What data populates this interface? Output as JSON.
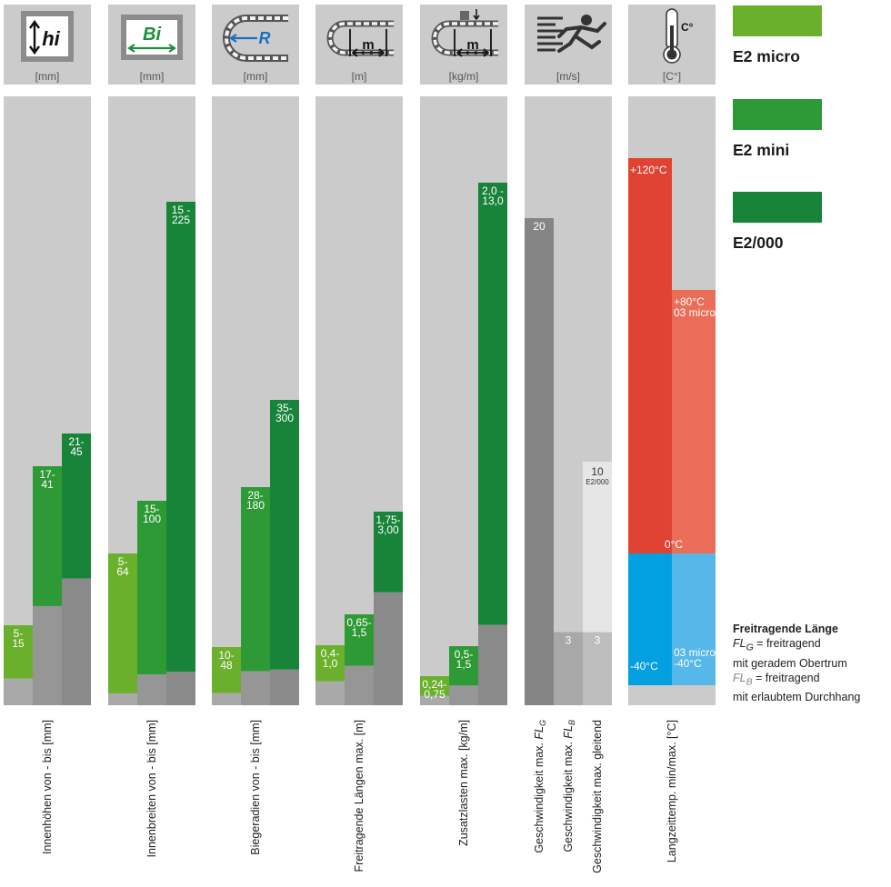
{
  "legend": [
    {
      "label": "E2 micro",
      "color": "#6ab02c"
    },
    {
      "label": "E2 mini",
      "color": "#2e9a36"
    },
    {
      "label": "E2/000",
      "color": "#17843a"
    }
  ],
  "icons": [
    {
      "name": "inner-height-icon",
      "text": "hi",
      "unit": "[mm]"
    },
    {
      "name": "inner-width-icon",
      "text": "Bi",
      "unit": "[mm]"
    },
    {
      "name": "bending-radius-icon",
      "text": "R",
      "unit": "[mm]"
    },
    {
      "name": "unsupported-length-icon",
      "text": "m",
      "unit": "[m]"
    },
    {
      "name": "additional-load-icon",
      "text": "m",
      "unit": "[kg/m]"
    },
    {
      "name": "running-man-icon",
      "text": "",
      "unit": "[m/s]"
    },
    {
      "name": "thermometer-icon",
      "text": "C°",
      "unit": "[C°]"
    }
  ],
  "note": {
    "title": "Freitragende Länge",
    "fl": "FL",
    "g_sub": "G",
    "b_sub": "B",
    "g_line1": " = freitragend",
    "g_line2": "mit geradem Obertrum",
    "b_line1": " = freitragend",
    "b_line2": "mit erlaubtem Durchhang"
  },
  "chart_data": [
    {
      "type": "bar",
      "title": "",
      "xlabel": "Innenhöhen von - bis [mm]",
      "unit": "[mm]",
      "series": [
        {
          "name": "E2 micro",
          "min": 5,
          "max": 15,
          "label_lines": [
            "5-",
            "15"
          ]
        },
        {
          "name": "E2 mini",
          "min": 17,
          "max": 41,
          "label_lines": [
            "17-",
            "41"
          ]
        },
        {
          "name": "E2/000",
          "min": 21,
          "max": 45,
          "label_lines": [
            "21-",
            "45"
          ]
        }
      ]
    },
    {
      "type": "bar",
      "title": "",
      "xlabel": "Innenbreiten von - bis [mm]",
      "unit": "[mm]",
      "series": [
        {
          "name": "E2 micro",
          "min": 5,
          "max": 64,
          "label_lines": [
            "5-",
            "64"
          ]
        },
        {
          "name": "E2 mini",
          "min": 15,
          "max": 100,
          "label_lines": [
            "15-",
            "100"
          ]
        },
        {
          "name": "E2/000",
          "min": 15,
          "max": 225,
          "label_lines": [
            "15 -",
            "225"
          ]
        }
      ]
    },
    {
      "type": "bar",
      "title": "",
      "xlabel": "Biegeradien von - bis [mm]",
      "unit": "[mm]",
      "series": [
        {
          "name": "E2 micro",
          "min": 10,
          "max": 48,
          "label_lines": [
            "10-",
            "48"
          ]
        },
        {
          "name": "E2 mini",
          "min": 28,
          "max": 180,
          "label_lines": [
            "28-",
            "180"
          ]
        },
        {
          "name": "E2/000",
          "min": 35,
          "max": 300,
          "label_lines": [
            "35-",
            "300"
          ]
        }
      ]
    },
    {
      "type": "bar",
      "title": "",
      "xlabel": "Freitragende Längen max. [m]",
      "unit": "[m]",
      "series": [
        {
          "name": "E2 micro",
          "min": 0.4,
          "max": 1.0,
          "label_lines": [
            "0,4-",
            "1,0"
          ]
        },
        {
          "name": "E2 mini",
          "min": 0.65,
          "max": 1.5,
          "label_lines": [
            "0,65-",
            "1,5"
          ]
        },
        {
          "name": "E2/000",
          "min": 1.75,
          "max": 3.0,
          "label_lines": [
            "1,75-",
            "3,00"
          ]
        }
      ]
    },
    {
      "type": "bar",
      "title": "",
      "xlabel": "Zusatzlasten max. [kg/m]",
      "unit": "[kg/m]",
      "series": [
        {
          "name": "E2 micro",
          "min": 0.24,
          "max": 0.75,
          "label_lines": [
            "0,24-",
            "0,75"
          ]
        },
        {
          "name": "E2 mini",
          "min": 0.5,
          "max": 1.5,
          "label_lines": [
            "0,5-",
            "1,5"
          ]
        },
        {
          "name": "E2/000",
          "min": 2.0,
          "max": 13.0,
          "label_lines": [
            "2,0 -",
            "13,0"
          ]
        }
      ]
    },
    {
      "type": "bar",
      "title": "",
      "unit": "[m/s]",
      "bars": [
        {
          "label_lines": [
            "20"
          ],
          "value": 20,
          "color": "#858585",
          "xlabel": {
            "text": "Geschwindigkeit max. ",
            "fl": "FL",
            "sub": "G"
          }
        },
        {
          "label_lines": [
            "3"
          ],
          "value": 3,
          "color": "#a8a8a8",
          "xlabel": {
            "text": "Geschwindigkeit max. ",
            "fl": "FL",
            "sub": "B"
          }
        },
        {
          "label_lines": [
            "3"
          ],
          "value": 3,
          "color": "#bdbdbd",
          "upper": {
            "label_lines": [
              "10",
              "E2/000"
            ],
            "value": 10,
            "color": "#e6e6e6"
          },
          "xlabel": {
            "text": "Geschwindigkeit max. gleitend",
            "fl": "",
            "sub": ""
          }
        }
      ]
    },
    {
      "type": "bar",
      "title": "",
      "xlabel": "Langzeittemp. min/max. [°C]",
      "unit": "[C°]",
      "zero_label": "0°C",
      "bars": [
        {
          "max": 120,
          "min": -40,
          "max_label": "+120°C",
          "min_label": "-40°C",
          "pos_color": "#e04332",
          "neg_color": "#02a0e0"
        },
        {
          "max": 80,
          "min": -40,
          "max_label": "+80°C",
          "max_sub": "03 micro",
          "min_label": "03 micro",
          "min_sub": "-40°C",
          "pos_color": "#ea6e57",
          "neg_color": "#55b8e8"
        }
      ]
    }
  ]
}
